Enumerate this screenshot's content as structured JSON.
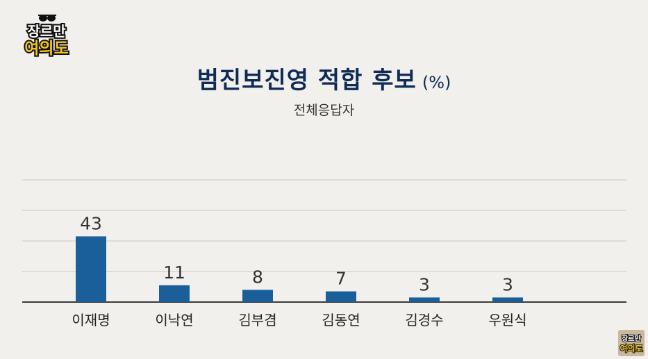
{
  "logo": {
    "line1": "장르만",
    "line2": "여의도"
  },
  "chart_data": {
    "type": "bar",
    "title": "범진보진영 적합 후보",
    "unit": "(%)",
    "subtitle": "전체응답자",
    "categories": [
      "이재명",
      "이낙연",
      "김부겸",
      "김동연",
      "김경수",
      "우원식"
    ],
    "values": [
      43,
      11,
      8,
      7,
      3,
      3
    ],
    "ylim": [
      0,
      100
    ],
    "grid": true,
    "bar_color": "#1b5f9a"
  },
  "colors": {
    "title": "#0f2b56",
    "background": "#f2f0ed",
    "logo_yellow": "#f5c51b"
  }
}
